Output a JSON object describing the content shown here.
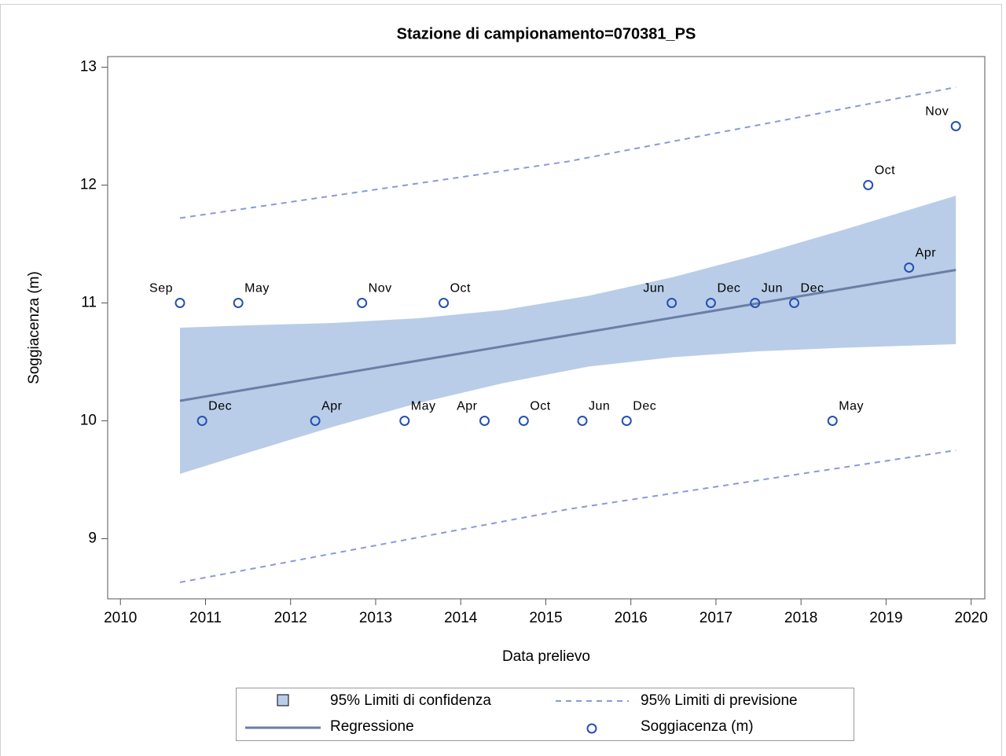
{
  "chart_data": {
    "type": "scatter",
    "title": "Stazione di campionamento=070381_PS",
    "x_label": "Data prelievo",
    "y_label": "Soggiacenza (m)",
    "xlim": [
      2009.85,
      2020.16
    ],
    "ylim": [
      8.49,
      13.09
    ],
    "xticks": [
      2010,
      2011,
      2012,
      2013,
      2014,
      2015,
      2016,
      2017,
      2018,
      2019,
      2020
    ],
    "yticks": [
      9,
      10,
      11,
      12,
      13
    ],
    "confidence": {
      "name": "95% Limiti di confidenza",
      "color": "#b9cde8",
      "x": [
        2010.7,
        2011.5,
        2012.5,
        2013.5,
        2014.5,
        2015.5,
        2016.5,
        2017.5,
        2018.5,
        2019.82
      ],
      "upper": [
        10.79,
        10.81,
        10.83,
        10.87,
        10.94,
        11.06,
        11.22,
        11.41,
        11.62,
        11.91
      ],
      "lower": [
        9.55,
        9.73,
        9.95,
        10.15,
        10.32,
        10.46,
        10.54,
        10.59,
        10.62,
        10.65
      ]
    },
    "prediction": {
      "name": "95% Limiti di previsione",
      "color": "#8a9ad8",
      "x": [
        2010.7,
        2015.26,
        2019.82
      ],
      "upper": [
        11.72,
        12.2,
        12.83
      ],
      "lower": [
        8.63,
        9.25,
        9.75
      ]
    },
    "regression": {
      "name": "Regressione",
      "color": "#6b7ea6",
      "x": [
        2010.7,
        2019.82
      ],
      "values": [
        10.17,
        11.28
      ]
    },
    "points": {
      "name": "Soggiacenza (m)",
      "color": "#2451b2",
      "x": [
        2010.7,
        2010.96,
        2011.385,
        2012.29,
        2012.84,
        2013.34,
        2013.8,
        2014.28,
        2014.74,
        2015.43,
        2015.95,
        2016.48,
        2016.94,
        2017.46,
        2017.92,
        2018.37,
        2018.79,
        2019.27,
        2019.82
      ],
      "values": [
        11,
        10,
        11,
        10,
        11,
        10,
        11,
        10,
        10,
        10,
        10,
        11,
        11,
        11,
        11,
        10,
        12,
        11.3,
        12.5
      ],
      "labels": [
        "Sep",
        "Dec",
        "May",
        "Apr",
        "Nov",
        "May",
        "Oct",
        "Apr",
        "Oct",
        "Jun",
        "Dec",
        "Jun",
        "Dec",
        "Jun",
        "Dec",
        "May",
        "Oct",
        "Apr",
        "Nov"
      ]
    }
  }
}
